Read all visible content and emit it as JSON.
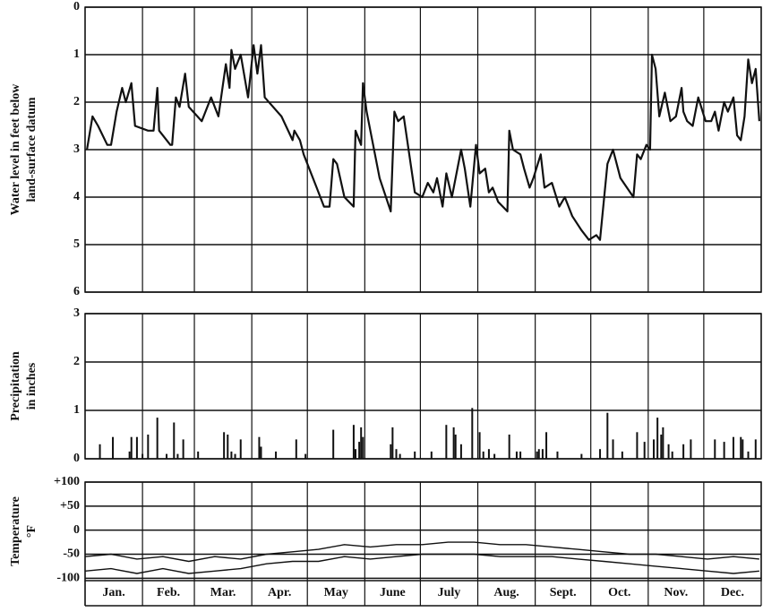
{
  "chart_data": [
    {
      "type": "line",
      "ylabel": [
        "Water level in feet below",
        "land-surface datum"
      ],
      "color": "#111111",
      "invert_y": true,
      "grid": true,
      "ylim": [
        0,
        6
      ],
      "yticks": [
        0,
        1,
        2,
        3,
        4,
        5,
        6
      ],
      "x": [
        1,
        4,
        7,
        12,
        14,
        17,
        20,
        22,
        25,
        27,
        34,
        37,
        39,
        40,
        46,
        47,
        49,
        51,
        54,
        56,
        63,
        68,
        72,
        76,
        78,
        79,
        81,
        84,
        88,
        91,
        93,
        95,
        97,
        106,
        112,
        113,
        116,
        118,
        125,
        129,
        132,
        134,
        136,
        140,
        145,
        146,
        149,
        150,
        152,
        159,
        165,
        167,
        169,
        172,
        178,
        182,
        185,
        188,
        190,
        193,
        195,
        198,
        203,
        205,
        208,
        211,
        213,
        216,
        218,
        220,
        223,
        228,
        229,
        231,
        235,
        237,
        240,
        242,
        246,
        248,
        252,
        256,
        259,
        263,
        268,
        272,
        276,
        278,
        282,
        285,
        289,
        296,
        298,
        300,
        303,
        305,
        306,
        308,
        310,
        313,
        316,
        319,
        322,
        323,
        325,
        328,
        331,
        335,
        338,
        340,
        342,
        345,
        347,
        350,
        352,
        354,
        356,
        358,
        360,
        362,
        364
      ],
      "values": [
        3.0,
        2.3,
        2.5,
        2.9,
        2.9,
        2.2,
        1.7,
        2.0,
        1.6,
        2.5,
        2.6,
        2.6,
        1.7,
        2.6,
        2.9,
        2.9,
        1.9,
        2.1,
        1.4,
        2.1,
        2.4,
        1.9,
        2.3,
        1.2,
        1.7,
        0.9,
        1.3,
        1.0,
        1.9,
        0.8,
        1.4,
        0.8,
        1.9,
        2.3,
        2.8,
        2.6,
        2.8,
        3.1,
        3.8,
        4.2,
        4.2,
        3.2,
        3.3,
        4.0,
        4.2,
        2.6,
        2.9,
        1.6,
        2.2,
        3.6,
        4.3,
        2.2,
        2.4,
        2.3,
        3.9,
        4.0,
        3.7,
        3.9,
        3.6,
        4.2,
        3.5,
        4.0,
        3.0,
        3.4,
        4.2,
        2.9,
        3.5,
        3.4,
        3.9,
        3.8,
        4.1,
        4.3,
        2.6,
        3.0,
        3.1,
        3.4,
        3.8,
        3.6,
        3.1,
        3.8,
        3.7,
        4.2,
        4.0,
        4.4,
        4.7,
        4.9,
        4.8,
        4.9,
        3.3,
        3.0,
        3.6,
        4.0,
        3.1,
        3.2,
        2.9,
        3.0,
        1.0,
        1.3,
        2.3,
        1.8,
        2.4,
        2.3,
        1.7,
        2.2,
        2.4,
        2.5,
        1.9,
        2.4,
        2.4,
        2.2,
        2.6,
        2.0,
        2.2,
        1.9,
        2.7,
        2.8,
        2.3,
        1.1,
        1.6,
        1.3,
        2.4
      ]
    },
    {
      "type": "bar",
      "ylabel": [
        "Precipitation",
        "in inches"
      ],
      "color": "#111111",
      "grid": true,
      "ylim": [
        0,
        3
      ],
      "yticks": [
        0,
        1,
        2,
        3
      ],
      "x": [
        8,
        15,
        24,
        25,
        28,
        31,
        34,
        39,
        44,
        48,
        50,
        53,
        61,
        75,
        77,
        79,
        81,
        84,
        94,
        95,
        103,
        114,
        119,
        134,
        145,
        146,
        148,
        149,
        150,
        165,
        166,
        168,
        170,
        178,
        187,
        195,
        199,
        200,
        203,
        209,
        213,
        215,
        218,
        221,
        229,
        233,
        235,
        244,
        245,
        247,
        249,
        255,
        268,
        278,
        282,
        285,
        290,
        298,
        302,
        307,
        309,
        311,
        312,
        315,
        317,
        323,
        327,
        340,
        345,
        350,
        354,
        355,
        358,
        362
      ],
      "values": [
        0.3,
        0.45,
        0.15,
        0.45,
        0.45,
        0.1,
        0.5,
        0.85,
        0.1,
        0.75,
        0.1,
        0.4,
        0.15,
        0.55,
        0.5,
        0.15,
        0.1,
        0.4,
        0.45,
        0.25,
        0.15,
        0.4,
        0.1,
        0.6,
        0.7,
        0.2,
        0.35,
        0.65,
        0.45,
        0.3,
        0.65,
        0.2,
        0.1,
        0.15,
        0.15,
        0.7,
        0.65,
        0.5,
        0.3,
        1.05,
        0.55,
        0.15,
        0.2,
        0.1,
        0.5,
        0.15,
        0.15,
        0.15,
        0.2,
        0.2,
        0.55,
        0.15,
        0.1,
        0.2,
        0.95,
        0.4,
        0.15,
        0.55,
        0.35,
        0.4,
        0.85,
        0.5,
        0.65,
        0.3,
        0.15,
        0.3,
        0.4,
        0.4,
        0.35,
        0.45,
        0.45,
        0.4,
        0.15,
        0.4
      ]
    },
    {
      "type": "line",
      "ylabel": [
        "Temperature",
        "°F"
      ],
      "grid": true,
      "ylim": [
        -105,
        100
      ],
      "yticks": [
        {
          "value": 100,
          "label": "+100"
        },
        {
          "value": 50,
          "label": "+50"
        },
        0,
        -50,
        -100
      ],
      "xlim": [
        0,
        365
      ],
      "xticks": [
        0,
        31,
        59,
        90,
        120,
        151,
        181,
        212,
        243,
        273,
        304,
        334,
        365
      ],
      "categories": [
        "Jan.",
        "Feb.",
        "Mar.",
        "Apr.",
        "May",
        "June",
        "July",
        "Aug.",
        "Sept.",
        "Oct.",
        "Nov.",
        "Dec."
      ],
      "x": [
        0,
        14,
        28,
        42,
        56,
        70,
        84,
        98,
        112,
        126,
        140,
        154,
        168,
        182,
        196,
        210,
        224,
        238,
        252,
        266,
        280,
        294,
        308,
        322,
        336,
        350,
        364
      ],
      "series": [
        {
          "color": "#111111",
          "values": [
            -55,
            -50,
            -60,
            -55,
            -65,
            -55,
            -60,
            -50,
            -45,
            -40,
            -30,
            -35,
            -30,
            -30,
            -25,
            -25,
            -30,
            -30,
            -35,
            -40,
            -45,
            -50,
            -50,
            -55,
            -60,
            -55,
            -60
          ]
        },
        {
          "color": "#111111",
          "values": [
            -85,
            -80,
            -90,
            -80,
            -90,
            -85,
            -80,
            -70,
            -65,
            -65,
            -55,
            -60,
            -55,
            -50,
            -50,
            -50,
            -55,
            -55,
            -55,
            -60,
            -65,
            -70,
            -75,
            -80,
            -85,
            -90,
            -85
          ]
        }
      ]
    }
  ]
}
